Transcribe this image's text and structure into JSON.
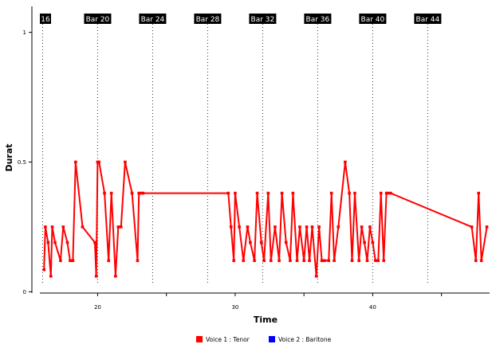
{
  "chart_data": {
    "type": "line",
    "xlabel": "Time",
    "ylabel": "Durat",
    "xlim": [
      15.8,
      48.5
    ],
    "ylim": [
      -0.005,
      1.1
    ],
    "x_ticks": [
      {
        "value": 20,
        "label": "20"
      },
      {
        "value": 25,
        "label": ""
      },
      {
        "value": 30,
        "label": "30"
      },
      {
        "value": 35,
        "label": ""
      },
      {
        "value": 40,
        "label": "40"
      },
      {
        "value": 45,
        "label": ""
      }
    ],
    "y_ticks": [
      {
        "value": 0,
        "label": "0"
      },
      {
        "value": 0.5,
        "label": "0.5"
      },
      {
        "value": 1,
        "label": "1"
      }
    ],
    "bar_markers": [
      {
        "x": 16,
        "label": "16"
      },
      {
        "x": 20,
        "label": "Bar 20"
      },
      {
        "x": 24,
        "label": "Bar 24"
      },
      {
        "x": 28,
        "label": "Bar 28"
      },
      {
        "x": 32,
        "label": "Bar 32"
      },
      {
        "x": 36,
        "label": "Bar 36"
      },
      {
        "x": 40,
        "label": "Bar 40"
      },
      {
        "x": 44,
        "label": "Bar 44"
      }
    ],
    "legend": {
      "placement": "bottom",
      "entries": [
        {
          "name": "Voice 1 : Tenor",
          "color": "#ff0000"
        },
        {
          "name": "Voice 2 : Baritone",
          "color": "#0000ff"
        }
      ]
    },
    "series": [
      {
        "name": "Voice 1 : Tenor",
        "color": "#ff0000",
        "x": [
          16.1,
          16.2,
          16.4,
          16.6,
          16.7,
          16.9,
          17.3,
          17.5,
          17.8,
          18.0,
          18.2,
          18.4,
          18.9,
          19.8,
          19.9,
          20.0,
          20.1,
          20.5,
          20.8,
          21.0,
          21.3,
          21.5,
          21.7,
          22.0,
          22.5,
          22.9,
          23.0,
          23.2,
          23.3,
          29.5,
          29.7,
          29.9,
          30.0,
          30.3,
          30.6,
          30.9,
          31.1,
          31.4,
          31.6,
          31.9,
          32.1,
          32.4,
          32.6,
          32.9,
          33.2,
          33.4,
          33.7,
          34.0,
          34.2,
          34.5,
          34.7,
          35.0,
          35.2,
          35.4,
          35.6,
          35.9,
          36.1,
          36.3,
          36.5,
          36.8,
          37.0,
          37.2,
          37.5,
          38.0,
          38.3,
          38.5,
          38.7,
          39.0,
          39.2,
          39.4,
          39.6,
          39.8,
          40.0,
          40.2,
          40.4,
          40.6,
          40.8,
          41.0,
          41.1,
          41.3,
          47.2,
          47.5,
          47.7,
          47.9,
          48.3
        ],
        "y": [
          0.085,
          0.25,
          0.19,
          0.06,
          0.25,
          0.19,
          0.12,
          0.25,
          0.19,
          0.12,
          0.12,
          0.5,
          0.25,
          0.19,
          0.06,
          0.5,
          0.5,
          0.38,
          0.12,
          0.38,
          0.06,
          0.25,
          0.25,
          0.5,
          0.38,
          0.12,
          0.38,
          0.38,
          0.38,
          0.38,
          0.25,
          0.12,
          0.38,
          0.25,
          0.12,
          0.25,
          0.19,
          0.12,
          0.38,
          0.19,
          0.12,
          0.38,
          0.12,
          0.25,
          0.12,
          0.38,
          0.19,
          0.12,
          0.38,
          0.12,
          0.25,
          0.12,
          0.25,
          0.12,
          0.25,
          0.06,
          0.25,
          0.12,
          0.12,
          0.12,
          0.38,
          0.12,
          0.25,
          0.5,
          0.38,
          0.12,
          0.38,
          0.12,
          0.25,
          0.19,
          0.12,
          0.25,
          0.19,
          0.12,
          0.12,
          0.38,
          0.12,
          0.38,
          0.38,
          0.38,
          0.25,
          0.12,
          0.38,
          0.12,
          0.25
        ]
      }
    ]
  }
}
